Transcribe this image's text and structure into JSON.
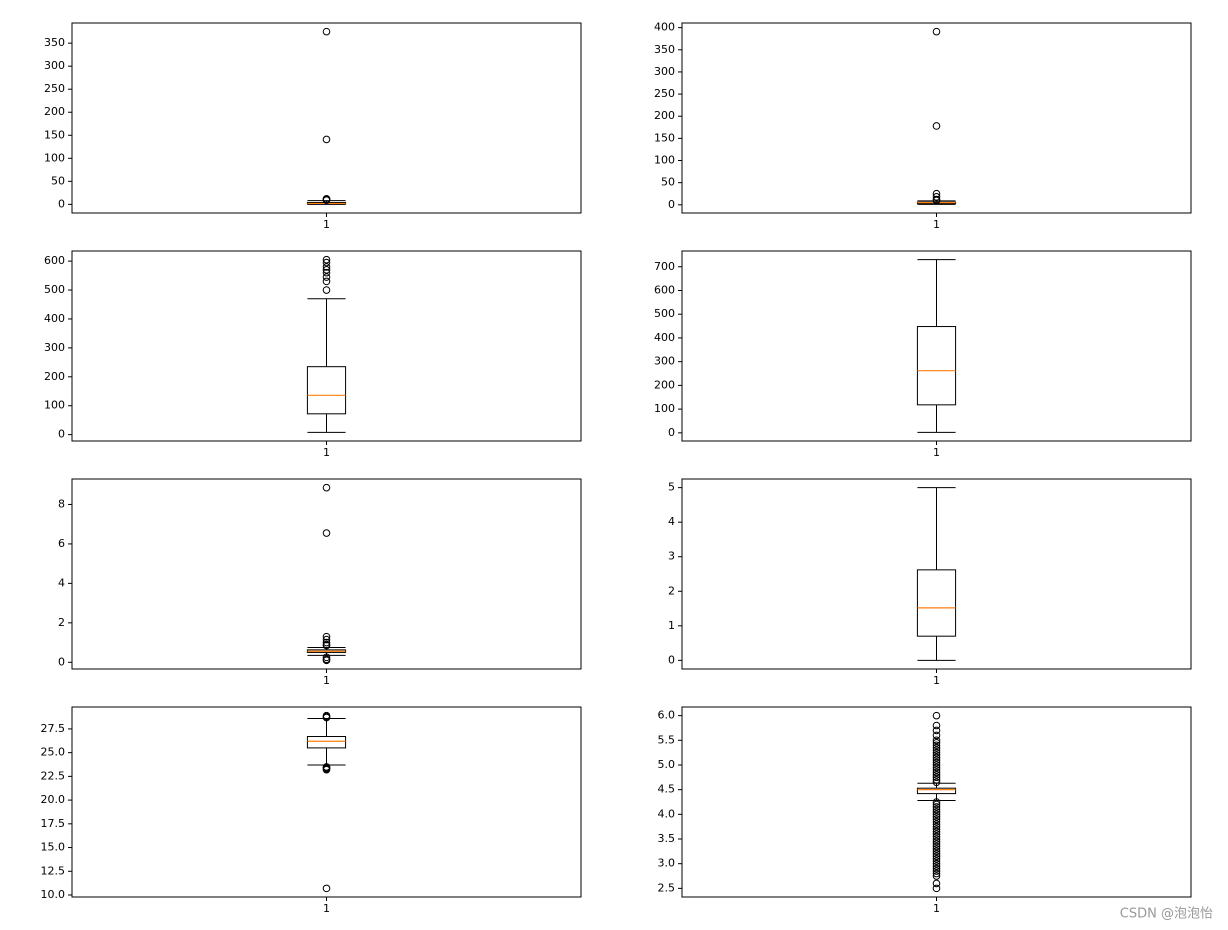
{
  "chart_data": [
    {
      "type": "box",
      "categories": [
        "1"
      ],
      "color": "#000000",
      "median_color": "#ff7f0e",
      "boxes": [
        {
          "whislo": 0,
          "q1": 1,
          "med": 2,
          "q3": 4,
          "whishi": 8,
          "fliers": [
            375,
            141,
            12,
            11,
            10,
            9
          ]
        }
      ],
      "ylim": [
        -18.75,
        393.75
      ],
      "yticks": [
        0,
        50,
        100,
        150,
        200,
        250,
        300,
        350
      ]
    },
    {
      "type": "box",
      "categories": [
        "1"
      ],
      "color": "#000000",
      "median_color": "#ff7f0e",
      "boxes": [
        {
          "whislo": 1,
          "q1": 3,
          "med": 5,
          "q3": 6,
          "whishi": 9,
          "fliers": [
            391,
            178,
            25,
            18,
            12,
            10
          ]
        }
      ],
      "ylim": [
        -18.5,
        410.5
      ],
      "yticks": [
        0,
        50,
        100,
        150,
        200,
        250,
        300,
        350,
        400
      ]
    },
    {
      "type": "box",
      "categories": [
        "1"
      ],
      "color": "#000000",
      "median_color": "#ff7f0e",
      "boxes": [
        {
          "whislo": 8,
          "q1": 72,
          "med": 136,
          "q3": 235,
          "whishi": 470,
          "fliers": [
            500,
            530,
            545,
            560,
            570,
            580,
            595,
            605
          ]
        }
      ],
      "ylim": [
        -22,
        635
      ],
      "yticks": [
        0,
        100,
        200,
        300,
        400,
        500,
        600
      ]
    },
    {
      "type": "box",
      "categories": [
        "1"
      ],
      "color": "#000000",
      "median_color": "#ff7f0e",
      "boxes": [
        {
          "whislo": 2,
          "q1": 118,
          "med": 262,
          "q3": 448,
          "whishi": 730,
          "fliers": []
        }
      ],
      "ylim": [
        -34.4,
        766.4
      ],
      "yticks": [
        0,
        100,
        200,
        300,
        400,
        500,
        600,
        700
      ]
    },
    {
      "type": "box",
      "categories": [
        "1"
      ],
      "color": "#000000",
      "median_color": "#ff7f0e",
      "boxes": [
        {
          "whislo": 0.35,
          "q1": 0.5,
          "med": 0.56,
          "q3": 0.63,
          "whishi": 0.75,
          "fliers": [
            8.85,
            6.55,
            1.3,
            1.15,
            1.0,
            0.9,
            0.85,
            0.25,
            0.15,
            0.1
          ]
        }
      ],
      "ylim": [
        -0.34,
        9.29
      ],
      "yticks": [
        0,
        2,
        4,
        6,
        8
      ]
    },
    {
      "type": "box",
      "categories": [
        "1"
      ],
      "color": "#000000",
      "median_color": "#ff7f0e",
      "boxes": [
        {
          "whislo": 0,
          "q1": 0.7,
          "med": 1.52,
          "q3": 2.62,
          "whishi": 5,
          "fliers": []
        }
      ],
      "ylim": [
        -0.25,
        5.25
      ],
      "yticks": [
        0,
        1,
        2,
        3,
        4,
        5
      ]
    },
    {
      "type": "box",
      "categories": [
        "1"
      ],
      "color": "#000000",
      "median_color": "#ff7f0e",
      "boxes": [
        {
          "whislo": 23.7,
          "q1": 25.5,
          "med": 26.2,
          "q3": 26.7,
          "whishi": 28.6,
          "fliers": [
            28.9,
            28.8,
            28.7,
            23.5,
            23.4,
            23.3,
            23.2,
            10.7
          ]
        }
      ],
      "ylim": [
        9.79,
        29.81
      ],
      "yticks": [
        {
          "value": 10,
          "label": "10.0"
        },
        12.5,
        {
          "value": 15,
          "label": "15.0"
        },
        17.5,
        {
          "value": 20,
          "label": "20.0"
        },
        22.5,
        {
          "value": 25,
          "label": "25.0"
        },
        27.5
      ]
    },
    {
      "type": "box",
      "categories": [
        "1"
      ],
      "color": "#000000",
      "median_color": "#ff7f0e",
      "boxes": [
        {
          "whislo": 4.28,
          "q1": 4.42,
          "med": 4.5,
          "q3": 4.53,
          "whishi": 4.63,
          "fliers": [
            4.65,
            4.7,
            4.75,
            4.8,
            4.85,
            4.9,
            4.95,
            5.0,
            5.05,
            5.1,
            5.15,
            5.2,
            5.25,
            5.3,
            5.35,
            5.4,
            5.45,
            5.5,
            5.6,
            5.7,
            5.8,
            6.0,
            4.25,
            4.2,
            4.15,
            4.1,
            4.05,
            4.0,
            3.95,
            3.9,
            3.85,
            3.8,
            3.75,
            3.7,
            3.65,
            3.6,
            3.55,
            3.5,
            3.45,
            3.4,
            3.35,
            3.3,
            3.25,
            3.2,
            3.15,
            3.1,
            3.05,
            3.0,
            2.95,
            2.9,
            2.85,
            2.8,
            2.75,
            2.6,
            2.5
          ]
        }
      ],
      "ylim": [
        2.325,
        6.175
      ],
      "yticks": [
        2.5,
        {
          "value": 3,
          "label": "3.0"
        },
        3.5,
        {
          "value": 4,
          "label": "4.0"
        },
        4.5,
        {
          "value": 5,
          "label": "5.0"
        },
        5.5,
        {
          "value": 6,
          "label": "6.0"
        }
      ]
    }
  ],
  "watermark": "CSDN @泡泡怡"
}
